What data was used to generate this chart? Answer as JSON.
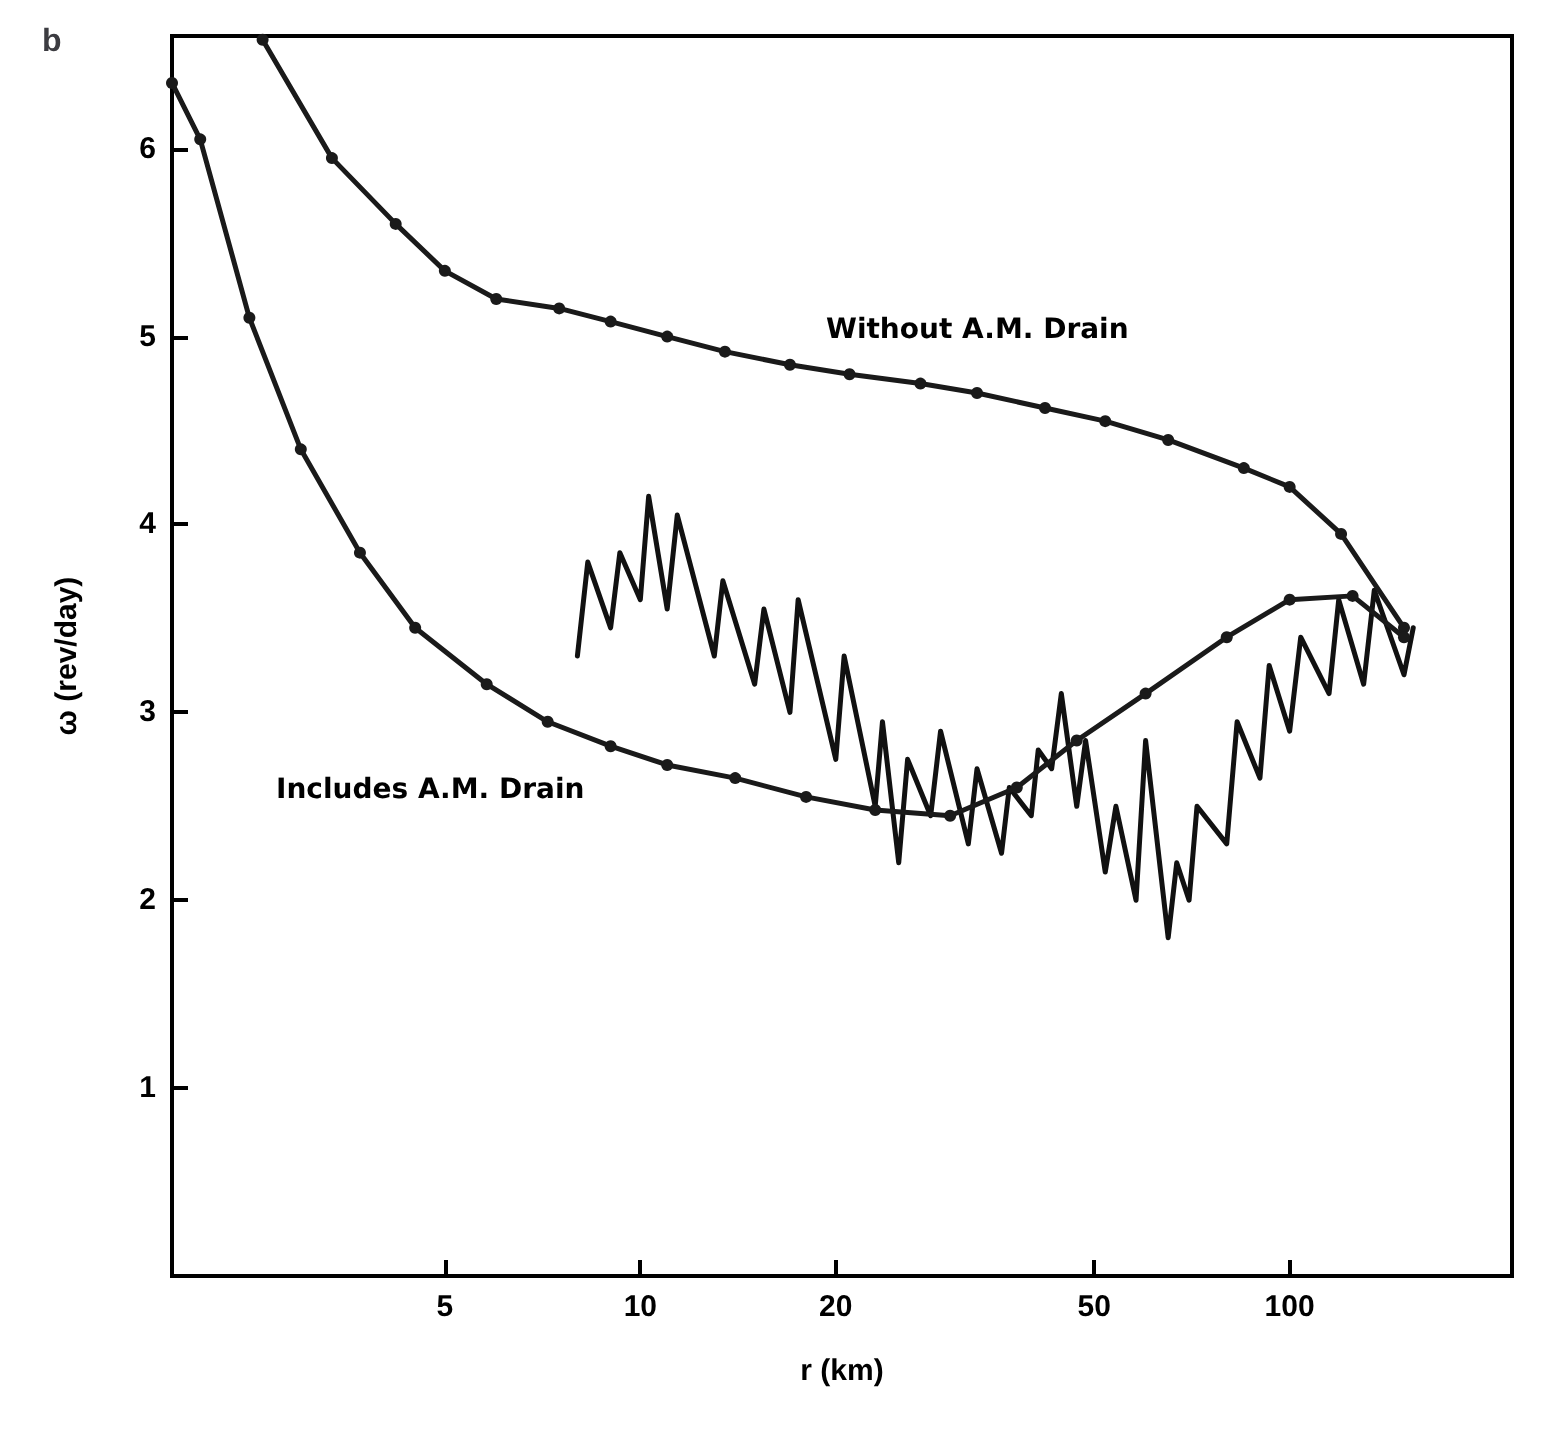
{
  "chart_data": {
    "type": "line",
    "title": "b",
    "xlabel": "r (km)",
    "ylabel": "ω (rev/day)",
    "log": "x",
    "xlim": [
      1.9,
      220
    ],
    "xticks": [
      5,
      10,
      20,
      50,
      100
    ],
    "ylim": [
      0,
      6.6
    ],
    "yticks": [
      1,
      2,
      3,
      4,
      5,
      6
    ],
    "grid": false,
    "marker": "circle",
    "line_style": "solid",
    "series": [
      {
        "color": "#1a1a1a",
        "x": [
          2.62,
          3.35,
          4.2,
          5,
          6,
          7.5,
          9,
          11,
          13.5,
          17,
          21,
          27,
          33,
          42,
          52,
          65,
          85,
          100,
          120,
          150
        ],
        "values": [
          6.58,
          5.95,
          5.6,
          5.35,
          5.2,
          5.15,
          5.08,
          5.0,
          4.92,
          4.85,
          4.8,
          4.75,
          4.7,
          4.62,
          4.55,
          4.45,
          4.3,
          4.2,
          3.95,
          3.45
        ]
      },
      {
        "color": "#1a1a1a",
        "x": [
          1.9,
          2.1,
          2.5,
          3,
          3.7,
          4.5,
          5.8,
          7.2,
          9,
          11,
          14,
          18,
          23,
          30,
          38,
          47,
          60,
          80,
          100,
          125,
          150
        ],
        "values": [
          6.35,
          6.05,
          5.1,
          4.4,
          3.85,
          3.45,
          3.15,
          2.95,
          2.82,
          2.72,
          2.65,
          2.55,
          2.48,
          2.45,
          2.6,
          2.85,
          3.1,
          3.4,
          3.6,
          3.62,
          3.4
        ]
      },
      {
        "color": "#111111",
        "marker": "none",
        "x": [
          8,
          8.3,
          9,
          9.3,
          10,
          10.3,
          11,
          11.4,
          13,
          13.4,
          15,
          15.5,
          17,
          17.5,
          20,
          20.6,
          23,
          23.6,
          25,
          25.8,
          28,
          29,
          32,
          33,
          36,
          37,
          40,
          41,
          43,
          44.5,
          47,
          48.5,
          52,
          54,
          58,
          60,
          65,
          67,
          70,
          72,
          80,
          83,
          90,
          93,
          100,
          104,
          115,
          119,
          130,
          135,
          150,
          155
        ],
        "values": [
          3.3,
          3.8,
          3.45,
          3.85,
          3.6,
          4.15,
          3.55,
          4.05,
          3.3,
          3.7,
          3.15,
          3.55,
          3.0,
          3.6,
          2.75,
          3.3,
          2.5,
          2.95,
          2.2,
          2.75,
          2.45,
          2.9,
          2.3,
          2.7,
          2.25,
          2.6,
          2.45,
          2.8,
          2.7,
          3.1,
          2.5,
          2.85,
          2.15,
          2.5,
          2.0,
          2.85,
          1.8,
          2.2,
          2.0,
          2.5,
          2.3,
          2.95,
          2.65,
          3.25,
          2.9,
          3.4,
          3.1,
          3.6,
          3.15,
          3.65,
          3.2,
          3.45
        ]
      }
    ],
    "annotations": [
      "Without A.M. Drain",
      "Includes A.M. Drain"
    ]
  }
}
